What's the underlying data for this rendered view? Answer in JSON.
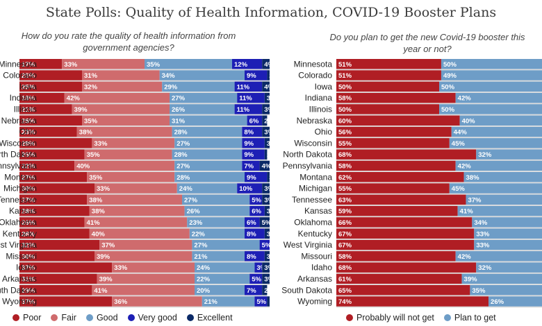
{
  "title": "State Polls: Quality of Health Information, COVID-19 Booster Plans",
  "colors": {
    "poor": "#b01e24",
    "fair": "#cf6b6d",
    "good": "#6e9dc7",
    "very_good": "#1d1fb5",
    "excellent": "#0b2a67",
    "will_not": "#b01e24",
    "plan": "#6e9dc7"
  },
  "chart_data": [
    {
      "type": "bar",
      "stacked": true,
      "orientation": "horizontal",
      "title": "How do you rate the quality of health information from government agencies?",
      "categories": [
        "Minnesota",
        "Colorado",
        "Iowa",
        "Indiana",
        "Illinois",
        "Nebraska",
        "Ohio",
        "Wisconsin",
        "North Dakota",
        "Pennsylvania",
        "Montana",
        "Michigan",
        "Tennessee",
        "Kansas",
        "Oklahoma",
        "Kentucky",
        "West Virginia",
        "Missouri",
        "Idaho",
        "Arkansas",
        "South Dakota",
        "Wyoming"
      ],
      "series": [
        {
          "name": "Poor",
          "color": "#b01e24",
          "values": [
            17,
            25,
            25,
            18,
            21,
            25,
            23,
            29,
            26,
            22,
            27,
            30,
            27,
            28,
            26,
            28,
            32,
            30,
            37,
            31,
            29,
            37
          ]
        },
        {
          "name": "Fair",
          "color": "#cf6b6d",
          "values": [
            33,
            31,
            32,
            42,
            39,
            35,
            38,
            33,
            35,
            40,
            35,
            33,
            38,
            38,
            41,
            40,
            37,
            39,
            33,
            39,
            41,
            36
          ]
        },
        {
          "name": "Good",
          "color": "#6e9dc7",
          "values": [
            35,
            34,
            29,
            27,
            26,
            31,
            28,
            27,
            28,
            27,
            28,
            24,
            27,
            26,
            23,
            22,
            27,
            21,
            24,
            22,
            20,
            21
          ]
        },
        {
          "name": "Very good",
          "color": "#1d1fb5",
          "values": [
            12,
            9,
            11,
            11,
            11,
            6,
            8,
            9,
            9,
            7,
            9,
            10,
            5,
            6,
            6,
            8,
            5,
            8,
            3,
            5,
            7,
            5
          ]
        },
        {
          "name": "Excellent",
          "color": "#0b2a67",
          "values": [
            4,
            2,
            4,
            3,
            3,
            2,
            3,
            3,
            1,
            4,
            3,
            3,
            3,
            3,
            5,
            3,
            1,
            3,
            3,
            3,
            2,
            1
          ]
        }
      ],
      "legend": [
        "Poor",
        "Fair",
        "Good",
        "Very good",
        "Excellent"
      ],
      "legend_position": "bottom",
      "xlim": [
        0,
        100
      ]
    },
    {
      "type": "bar",
      "stacked": true,
      "orientation": "horizontal",
      "title": "Do you plan to get the new Covid-19 booster this year or not?",
      "categories": [
        "Minnesota",
        "Colorado",
        "Iowa",
        "Indiana",
        "Illinois",
        "Nebraska",
        "Ohio",
        "Wisconsin",
        "North Dakota",
        "Pennsylvania",
        "Montana",
        "Michigan",
        "Tennessee",
        "Kansas",
        "Oklahoma",
        "Kentucky",
        "West Virginia",
        "Missouri",
        "Idaho",
        "Arkansas",
        "South Dakota",
        "Wyoming"
      ],
      "series": [
        {
          "name": "Probably will not get",
          "color": "#b01e24",
          "values": [
            51,
            51,
            50,
            58,
            50,
            60,
            56,
            55,
            68,
            58,
            62,
            55,
            63,
            59,
            66,
            67,
            67,
            58,
            68,
            61,
            65,
            74
          ]
        },
        {
          "name": "Plan to get",
          "color": "#6e9dc7",
          "values": [
            50,
            49,
            50,
            42,
            50,
            40,
            44,
            45,
            32,
            42,
            38,
            45,
            37,
            41,
            34,
            33,
            33,
            42,
            32,
            39,
            35,
            26
          ]
        }
      ],
      "legend": [
        "Probably will not get",
        "Plan to get"
      ],
      "legend_position": "bottom",
      "xlim": [
        0,
        100
      ]
    }
  ]
}
